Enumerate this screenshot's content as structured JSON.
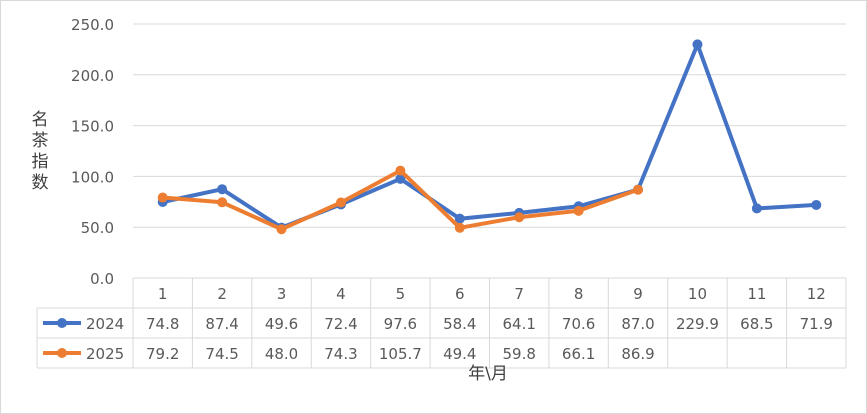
{
  "chart_data": {
    "type": "line",
    "title": "",
    "xlabel": "年\\月",
    "ylabel": "名茶指数",
    "ylim": [
      0,
      250
    ],
    "yticks": [
      "0.0",
      "50.0",
      "100.0",
      "150.0",
      "200.0",
      "250.0"
    ],
    "categories": [
      "1",
      "2",
      "3",
      "4",
      "5",
      "6",
      "7",
      "8",
      "9",
      "10",
      "11",
      "12"
    ],
    "grid": true,
    "legend": "table-rows",
    "series": [
      {
        "name": "2024",
        "color": "#4472c4",
        "values": [
          74.8,
          87.4,
          49.6,
          72.4,
          97.6,
          58.4,
          64.1,
          70.6,
          87.0,
          229.9,
          68.5,
          71.9
        ],
        "labels": [
          "74.8",
          "87.4",
          "49.6",
          "72.4",
          "97.6",
          "58.4",
          "64.1",
          "70.6",
          "87.0",
          "229.9",
          "68.5",
          "71.9"
        ]
      },
      {
        "name": "2025",
        "color": "#ed7d31",
        "values": [
          79.2,
          74.5,
          48.0,
          74.3,
          105.7,
          49.4,
          59.8,
          66.1,
          86.9,
          null,
          null,
          null
        ],
        "labels": [
          "79.2",
          "74.5",
          "48.0",
          "74.3",
          "105.7",
          "49.4",
          "59.8",
          "66.1",
          "86.9",
          "",
          "",
          ""
        ]
      }
    ]
  }
}
